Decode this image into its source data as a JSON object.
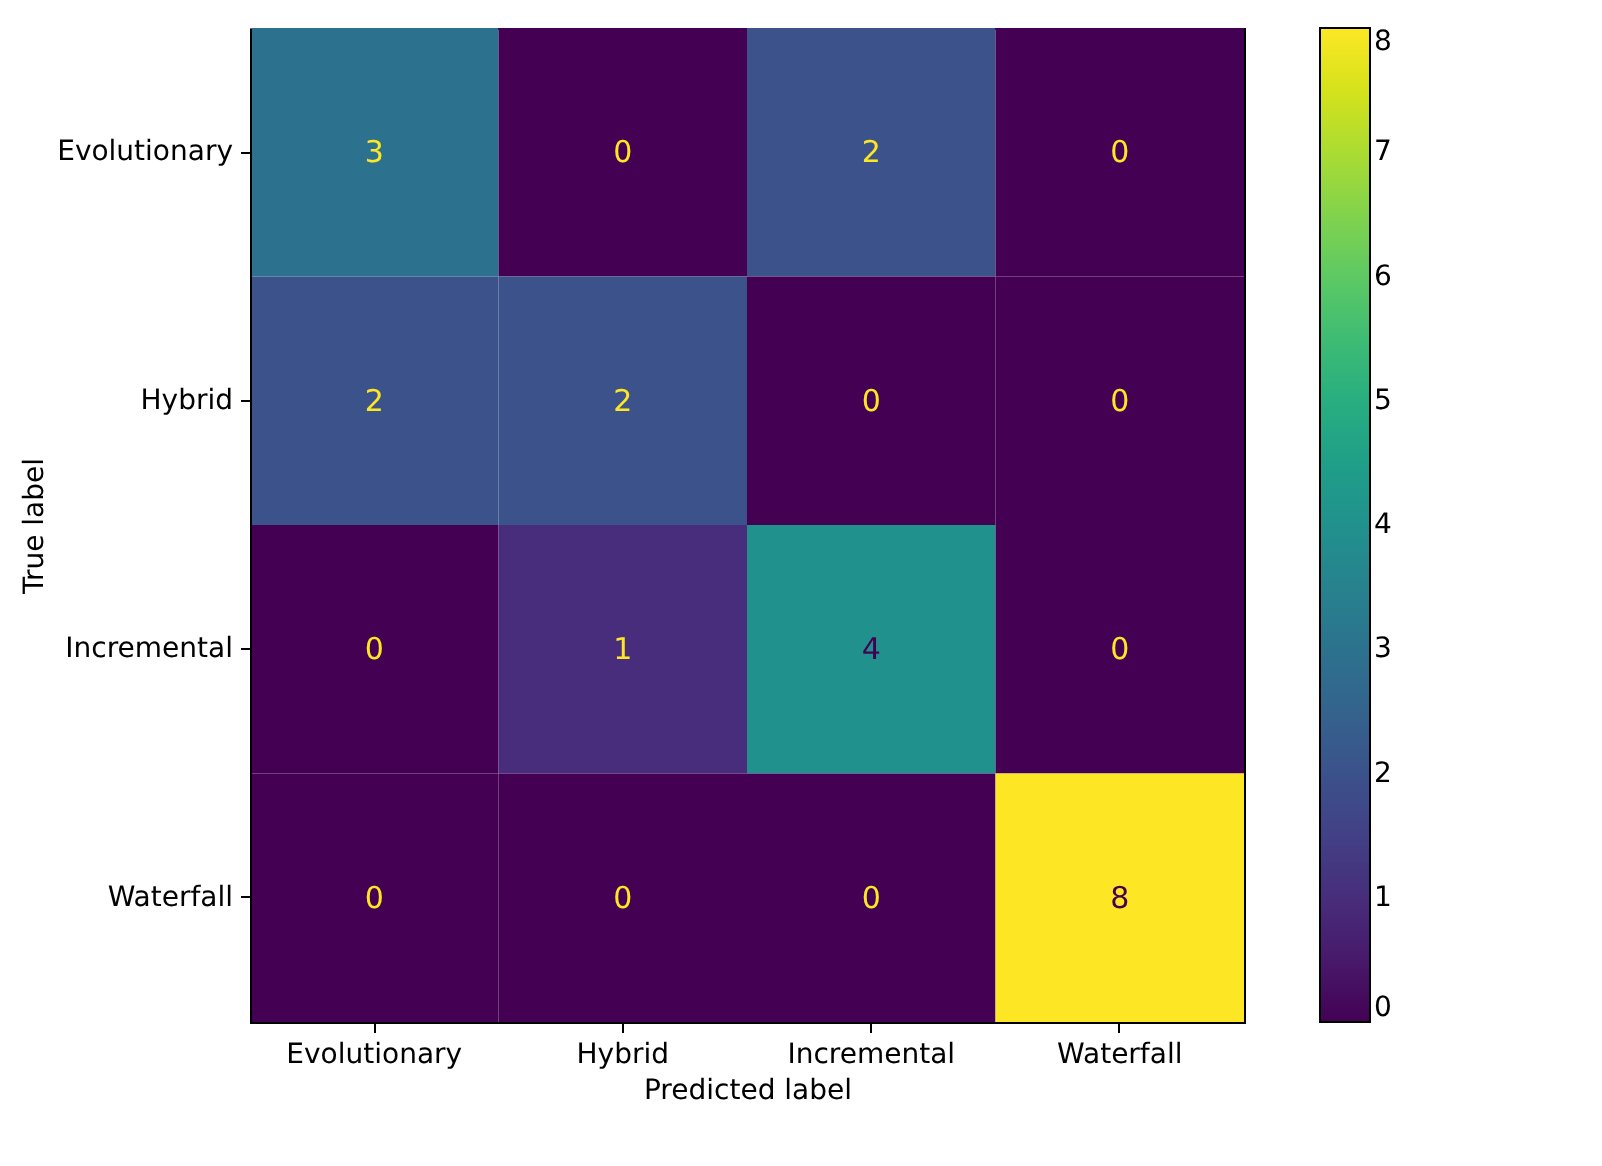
{
  "chart_data": {
    "type": "heatmap",
    "xlabel": "Predicted label",
    "ylabel": "True label",
    "categories": [
      "Evolutionary",
      "Hybrid",
      "Incremental",
      "Waterfall"
    ],
    "y_categories": [
      "Evolutionary",
      "Hybrid",
      "Incremental",
      "Waterfall"
    ],
    "cells": [
      [
        3,
        0,
        2,
        0
      ],
      [
        2,
        2,
        0,
        0
      ],
      [
        0,
        1,
        4,
        0
      ],
      [
        0,
        0,
        0,
        8
      ]
    ],
    "data_labels": true,
    "clim": [
      0,
      8
    ],
    "cticks": [
      0,
      1,
      2,
      3,
      4,
      5,
      6,
      7,
      8
    ]
  }
}
